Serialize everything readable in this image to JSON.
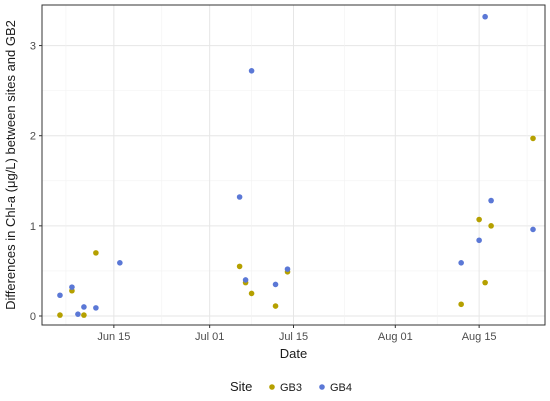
{
  "chart_data": {
    "type": "scatter",
    "xlabel": "Date",
    "ylabel": "Differences in Chl-a (μg/L) between sites and GB2",
    "x_ticks": [
      "Jun 15",
      "Jul 01",
      "Jul 15",
      "Aug 01",
      "Aug 15"
    ],
    "y_ticks": [
      "0",
      "1",
      "2",
      "3"
    ],
    "xlim": [
      "2020-06-03",
      "2020-08-26"
    ],
    "ylim": [
      -0.1,
      3.45
    ],
    "grid": true,
    "legend": {
      "title": "Site",
      "position": "bottom",
      "entries": [
        "GB3",
        "GB4"
      ]
    },
    "series": [
      {
        "name": "GB3",
        "color": "#b5a000",
        "points": [
          {
            "x": "2020-06-06",
            "y": 0.01
          },
          {
            "x": "2020-06-08",
            "y": 0.28
          },
          {
            "x": "2020-06-10",
            "y": 0.01
          },
          {
            "x": "2020-06-12",
            "y": 0.7
          },
          {
            "x": "2020-07-06",
            "y": 0.55
          },
          {
            "x": "2020-07-07",
            "y": 0.37
          },
          {
            "x": "2020-07-08",
            "y": 0.25
          },
          {
            "x": "2020-07-12",
            "y": 0.11
          },
          {
            "x": "2020-07-14",
            "y": 0.49
          },
          {
            "x": "2020-08-12",
            "y": 0.13
          },
          {
            "x": "2020-08-15",
            "y": 1.07
          },
          {
            "x": "2020-08-16",
            "y": 0.37
          },
          {
            "x": "2020-08-17",
            "y": 1.0
          },
          {
            "x": "2020-08-24",
            "y": 1.97
          }
        ]
      },
      {
        "name": "GB4",
        "color": "#5b78d6",
        "points": [
          {
            "x": "2020-06-06",
            "y": 0.23
          },
          {
            "x": "2020-06-08",
            "y": 0.32
          },
          {
            "x": "2020-06-09",
            "y": 0.02
          },
          {
            "x": "2020-06-10",
            "y": 0.1
          },
          {
            "x": "2020-06-12",
            "y": 0.09
          },
          {
            "x": "2020-06-16",
            "y": 0.59
          },
          {
            "x": "2020-07-06",
            "y": 1.32
          },
          {
            "x": "2020-07-07",
            "y": 0.4
          },
          {
            "x": "2020-07-08",
            "y": 2.72
          },
          {
            "x": "2020-07-12",
            "y": 0.35
          },
          {
            "x": "2020-07-14",
            "y": 0.52
          },
          {
            "x": "2020-08-12",
            "y": 0.59
          },
          {
            "x": "2020-08-15",
            "y": 0.84
          },
          {
            "x": "2020-08-16",
            "y": 3.32
          },
          {
            "x": "2020-08-17",
            "y": 1.28
          },
          {
            "x": "2020-08-24",
            "y": 0.96
          }
        ]
      }
    ]
  }
}
